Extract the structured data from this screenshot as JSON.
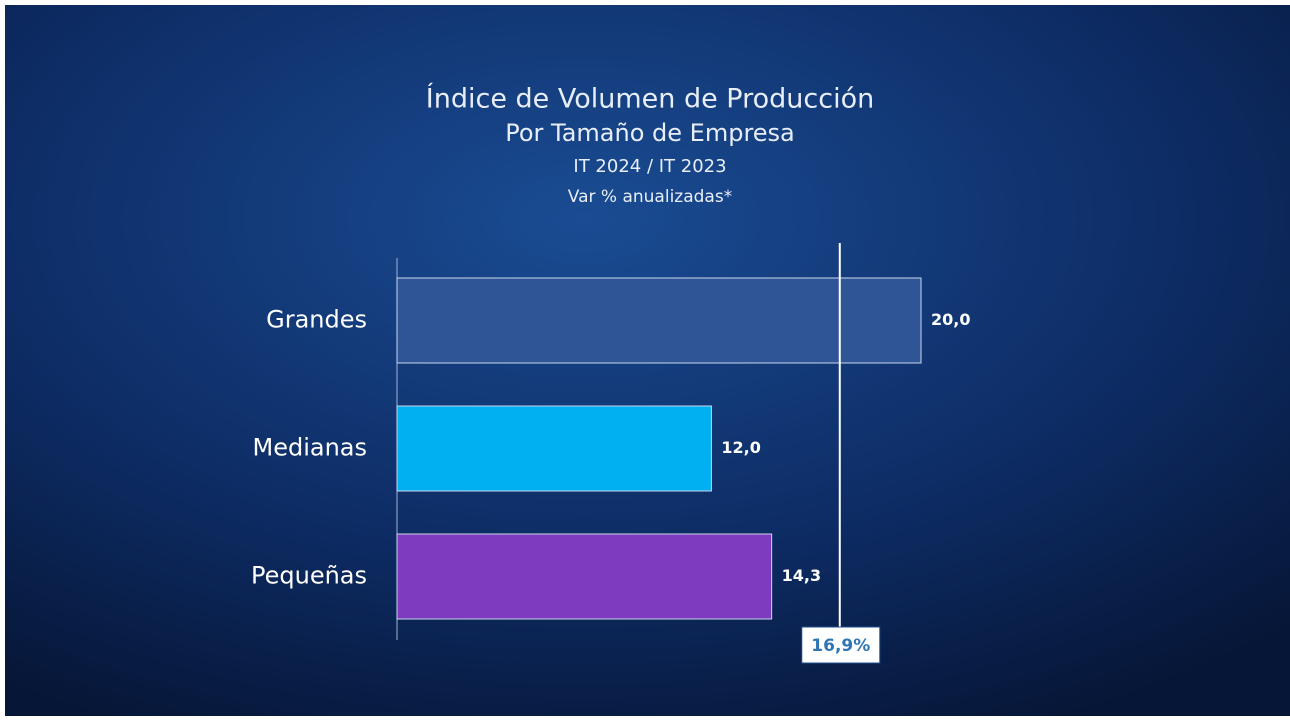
{
  "chart_data": {
    "type": "barh",
    "title": "Índice de Volumen de Producción",
    "subtitle": "Por Tamaño de Empresa",
    "period": "IT 2024 / IT 2023",
    "note": "Var % anualizadas*",
    "categories": [
      "Grandes",
      "Medianas",
      "Pequeñas"
    ],
    "values": [
      20.0,
      12.0,
      14.3
    ],
    "value_labels": [
      "20,0",
      "12,0",
      "14,3"
    ],
    "colors": [
      "#2f5597",
      "#00b0f0",
      "#7f3bbf"
    ],
    "xlim": [
      0,
      20
    ],
    "reference_line": {
      "value": 16.9,
      "label": "16,9%"
    }
  }
}
